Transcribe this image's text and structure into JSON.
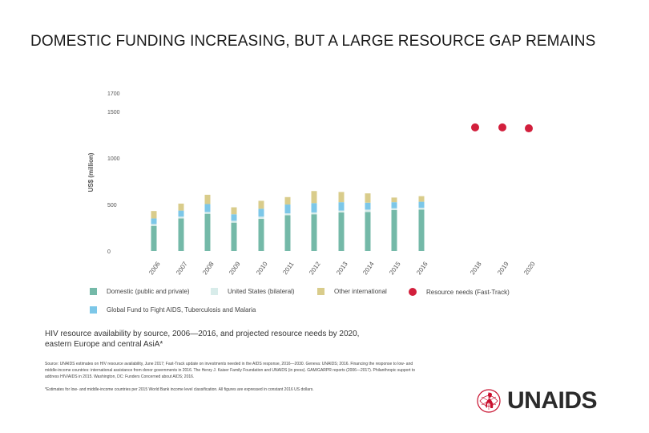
{
  "title": "DOMESTIC FUNDING INCREASING, BUT A LARGE RESOURCE GAP REMAINS",
  "colors": {
    "domestic": "#74b9a8",
    "us_bilateral": "#d8ecea",
    "global_fund": "#7cc7e8",
    "other_international": "#d9cc8b",
    "resource_needs": "#d21f3c"
  },
  "chart_data": {
    "type": "bar",
    "stacked": true,
    "ylabel": "US$ (million)",
    "xlabel": "",
    "ylim": [
      0,
      1700
    ],
    "yticks": [
      "0",
      "500",
      "1000",
      "1500",
      "1700"
    ],
    "ytick_values": [
      0,
      500,
      1000,
      1500,
      1700
    ],
    "categories": [
      "2006",
      "2007",
      "2008",
      "2009",
      "2010",
      "2011",
      "2012",
      "2013",
      "2014",
      "2015",
      "2016",
      "2018",
      "2019",
      "2020"
    ],
    "series": [
      {
        "name": "Domestic (public and private)",
        "color_key": "domestic",
        "values": [
          270,
          350,
          400,
          305,
          345,
          385,
          395,
          415,
          420,
          440,
          445,
          null,
          null,
          null
        ]
      },
      {
        "name": "United States (bilateral)",
        "color_key": "us_bilateral",
        "values": [
          20,
          20,
          20,
          20,
          25,
          20,
          20,
          20,
          25,
          20,
          20,
          null,
          null,
          null
        ]
      },
      {
        "name": "Global Fund to Fight AIDS, Tuberculosis and Malaria",
        "color_key": "global_fund",
        "values": [
          60,
          65,
          85,
          70,
          85,
          95,
          100,
          90,
          75,
          65,
          65,
          null,
          null,
          null
        ]
      },
      {
        "name": "Other international",
        "color_key": "other_international",
        "values": [
          80,
          75,
          100,
          75,
          85,
          80,
          130,
          110,
          100,
          50,
          60,
          null,
          null,
          null
        ]
      }
    ],
    "resource_needs": {
      "name": "Resource needs (Fast-Track)",
      "color_key": "resource_needs",
      "values": [
        null,
        null,
        null,
        null,
        null,
        null,
        null,
        null,
        null,
        null,
        null,
        1330,
        1330,
        1320
      ]
    },
    "legend": [
      {
        "label": "Domestic (public and private)",
        "color_key": "domestic",
        "shape": "square"
      },
      {
        "label": "United States (bilateral)",
        "color_key": "us_bilateral",
        "shape": "square"
      },
      {
        "label": "Other international",
        "color_key": "other_international",
        "shape": "square"
      },
      {
        "label": "Resource needs (Fast-Track)",
        "color_key": "resource_needs",
        "shape": "circle"
      },
      {
        "label": "Global Fund to Fight AIDS, Tuberculosis and Malaria",
        "color_key": "global_fund",
        "shape": "square"
      }
    ]
  },
  "caption": "HIV resource availability by source, 2006—2016, and projected resource needs by 2020, eastern Europe and central AsiA*",
  "source": "Source: UNAIDS estimates on HIV resource availability, June 2017; Fast-Track update on investments needed in the AIDS response, 2016—2030. Geneva: UNAIDS; 2016. Financing the response to low- and middle-income countries: international assistance from donor governments in 2016. The Henry J. Kaiser Family Foundation and UNAIDS (in press). GAM/GARPR reports (2006—2017). Philanthropic support to address HIV/AIDS in 2015. Washington, DC: Funders Concerned about AIDS; 2016.",
  "footnote": "*Estimates for low- and middle-income countries per 2015 World Bank income level classification. All figures are expressed in constant 2016 US dollars.",
  "logo": {
    "text": "UNAIDS"
  }
}
